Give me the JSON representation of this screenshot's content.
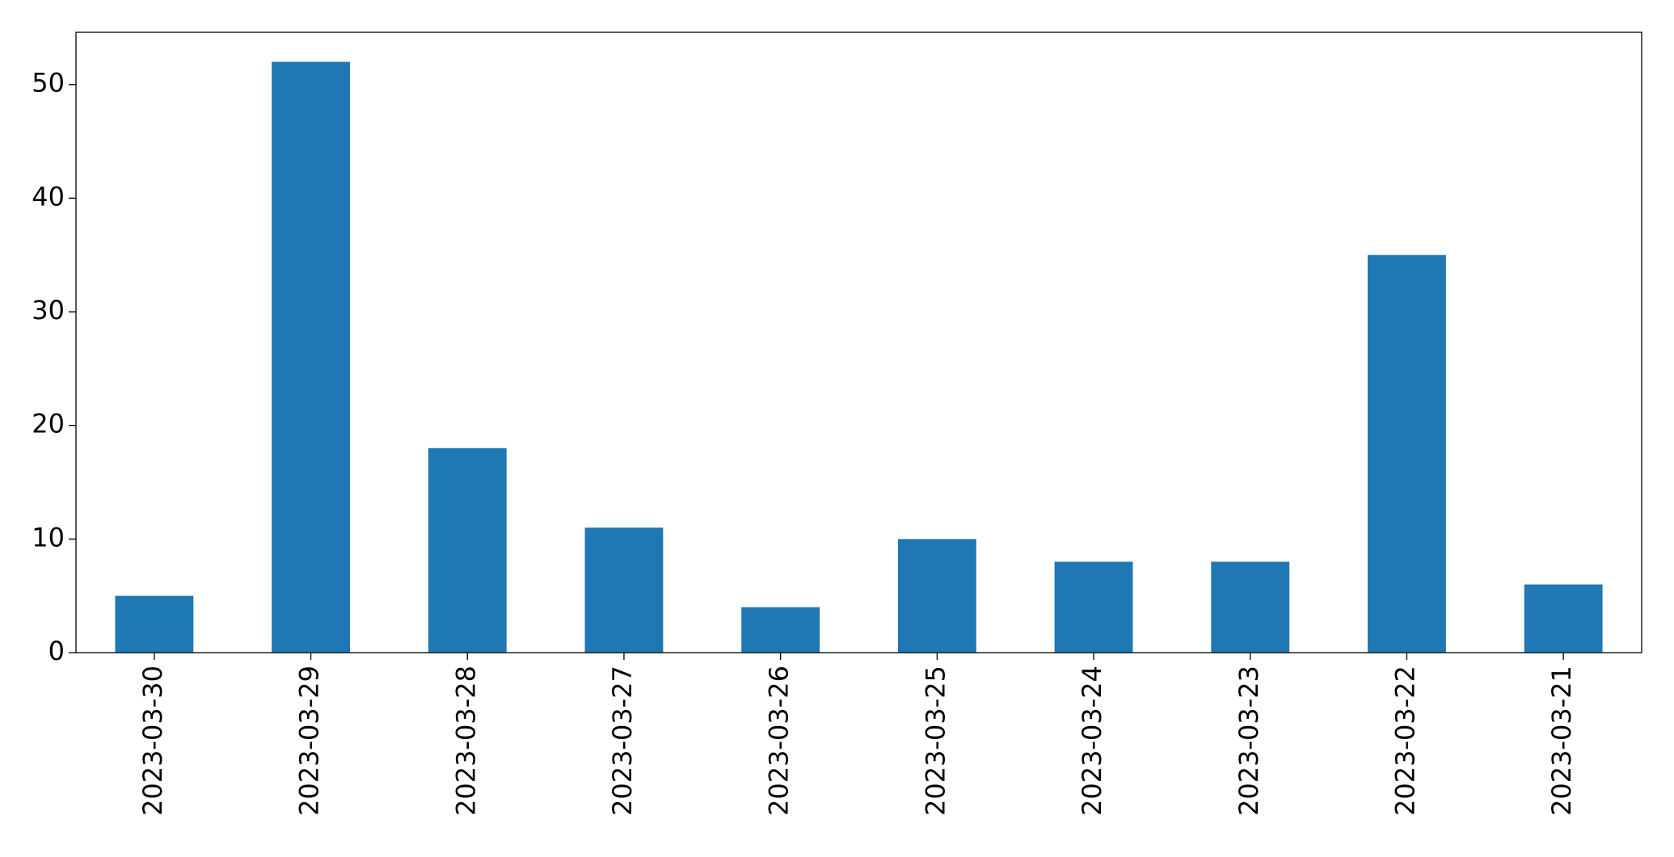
{
  "chart_data": {
    "type": "bar",
    "categories": [
      "2023-03-30",
      "2023-03-29",
      "2023-03-28",
      "2023-03-27",
      "2023-03-26",
      "2023-03-25",
      "2023-03-24",
      "2023-03-23",
      "2023-03-22",
      "2023-03-21"
    ],
    "values": [
      5,
      52,
      18,
      11,
      4,
      10,
      8,
      8,
      35,
      6
    ],
    "color": "#1f77b4",
    "ylim": [
      0,
      54.6
    ],
    "yticks": [
      0,
      10,
      20,
      30,
      40,
      50
    ],
    "grid": false
  }
}
